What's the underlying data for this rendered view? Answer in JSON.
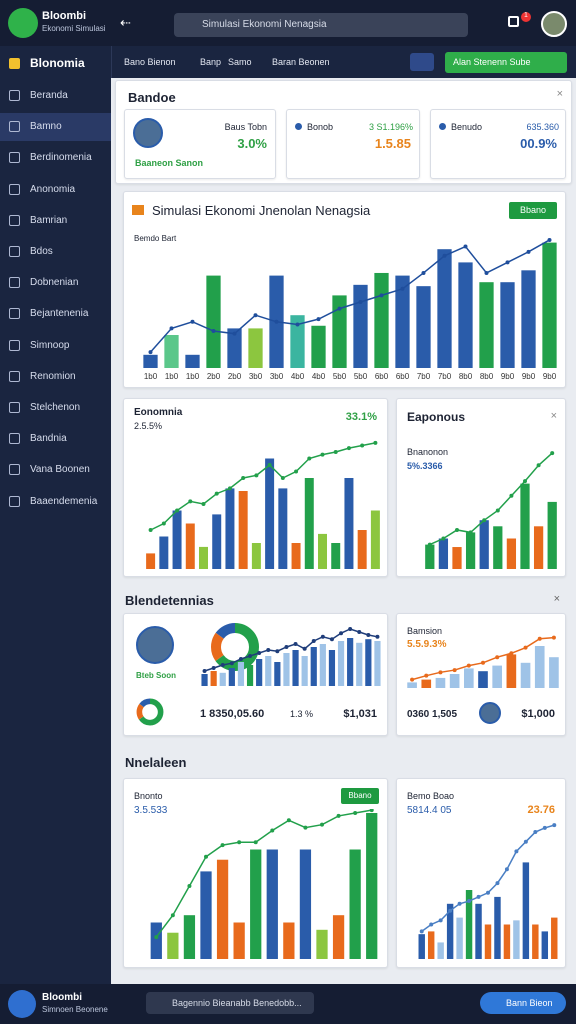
{
  "header": {
    "app_name": "Bloombi",
    "app_sub": "Ekonomi Simulasi",
    "search": "Simulasi Ekonomi Nenagsia",
    "badge": "1"
  },
  "sidebar": {
    "title": "Blonomia",
    "items": [
      "Beranda",
      "Bamno",
      "Berdinomenia",
      "Anonomia",
      "Bamrian",
      "Bdos",
      "Dobnenian",
      "Bejantenenia",
      "Simnoop",
      "Renomion",
      "Stelchenon",
      "Bandnia",
      "Vana Boonen",
      "Baaendemenia"
    ]
  },
  "subnav": {
    "items": [
      "Bano Bienon",
      "Banp",
      "Samo",
      "Baran Beonen"
    ],
    "button": "Alan Stenenn Sube"
  },
  "section1": {
    "title": "Bandoe",
    "kpis": [
      {
        "label": "Baus Tobn",
        "value": "3.0%",
        "name": "Baaneon Sanon"
      },
      {
        "label": "Bonob",
        "sub": "3 S1.196%",
        "value": "1.5.85"
      },
      {
        "label": "Benudo",
        "sub": "635.360",
        "value": "00.9%"
      }
    ]
  },
  "section2": {
    "title": "Blendetennias"
  },
  "section3": {
    "title": "Nnelaleen"
  },
  "charts": [
    {
      "type": "bar_line",
      "title": "Simulasi Ekonomi Jnenolan Nenagsia",
      "subtitle": "Bemdo Bart",
      "button": "Bbano",
      "ylim": [
        0,
        100
      ],
      "bars": [
        10,
        25,
        10,
        70,
        30,
        30,
        70,
        40,
        32,
        55,
        63,
        72,
        70,
        62,
        90,
        80,
        65,
        65,
        74,
        95
      ],
      "colors": [
        "#2a5caa",
        "#5bc78a",
        "#2a5caa",
        "#22a04b",
        "#2a5caa",
        "#8cc63f",
        "#2a5caa",
        "#3bb5a0",
        "#22a04b",
        "#22a04b",
        "#2a5caa",
        "#22a04b",
        "#2a5caa",
        "#2a5caa",
        "#2a5caa",
        "#2a5caa",
        "#22a04b",
        "#2a5caa",
        "#2a5caa",
        "#22a04b"
      ],
      "line": [
        12,
        30,
        35,
        28,
        26,
        40,
        35,
        33,
        37,
        45,
        50,
        55,
        60,
        72,
        85,
        92,
        72,
        80,
        88,
        97
      ],
      "line_color": "#1f4e9c",
      "x_labels": [
        "1b0",
        "1b0",
        "1b0",
        "2b0",
        "2b0",
        "3b0",
        "3b0",
        "4b0",
        "4b0",
        "5b0",
        "5b0",
        "6b0",
        "6b0",
        "7b0",
        "7b0",
        "8b0",
        "8b0",
        "9b0",
        "9b0",
        "9b0"
      ]
    },
    {
      "type": "bar_line",
      "title": "Eonomnia",
      "subtitle": "2.5.5%",
      "value": "33.1%",
      "ylim": [
        0,
        100
      ],
      "bars": [
        12,
        25,
        45,
        35,
        17,
        42,
        62,
        60,
        20,
        85,
        62,
        20,
        70,
        27,
        20,
        70,
        30,
        45
      ],
      "colors": [
        "#e86a1c",
        "#2a5caa",
        "#2a5caa",
        "#e86a1c",
        "#8cc63f",
        "#2a5caa",
        "#2a5caa",
        "#e86a1c",
        "#8cc63f",
        "#2a5caa",
        "#2a5caa",
        "#e86a1c",
        "#22a04b",
        "#8cc63f",
        "#22a04b",
        "#2a5caa",
        "#e86a1c",
        "#8cc63f"
      ],
      "line": [
        30,
        35,
        45,
        52,
        50,
        58,
        62,
        70,
        72,
        80,
        70,
        75,
        85,
        88,
        90,
        93,
        95,
        97
      ],
      "line_color": "#22a04b"
    },
    {
      "type": "bar_line",
      "title": "Eaponous",
      "subtitle": "Bnanonon",
      "value": "5%.3366",
      "ylim": [
        0,
        100
      ],
      "bars": [
        20,
        25,
        18,
        30,
        40,
        35,
        25,
        70,
        35,
        55
      ],
      "colors": [
        "#22a04b",
        "#2a5caa",
        "#e86a1c",
        "#22a04b",
        "#2a5caa",
        "#22a04b",
        "#e86a1c",
        "#22a04b",
        "#e86a1c",
        "#22a04b"
      ],
      "line": [
        20,
        25,
        32,
        30,
        40,
        48,
        60,
        72,
        85,
        95
      ],
      "line_color": "#22a04b"
    },
    {
      "type": "bar_line",
      "name": "Bteb Soon",
      "ylim": [
        0,
        100
      ],
      "donut": [
        65,
        20,
        15
      ],
      "donut_colors": [
        "#22a04b",
        "#e86a1c",
        "#2a5caa"
      ],
      "bars": [
        20,
        25,
        22,
        30,
        40,
        35,
        45,
        50,
        40,
        55,
        60,
        50,
        65,
        70,
        60,
        75,
        80,
        72,
        78,
        75
      ],
      "colors": [
        "#2a5caa",
        "#e86a1c",
        "#9fc3e7",
        "#2a5caa",
        "#9fc3e7",
        "#22a04b",
        "#2a5caa",
        "#9fc3e7",
        "#2a5caa",
        "#9fc3e7",
        "#2a5caa",
        "#9fc3e7",
        "#2a5caa",
        "#9fc3e7",
        "#2a5caa",
        "#9fc3e7",
        "#2a5caa",
        "#9fc3e7",
        "#2a5caa",
        "#9fc3e7"
      ],
      "line": [
        25,
        30,
        35,
        38,
        45,
        50,
        55,
        60,
        58,
        65,
        70,
        62,
        75,
        82,
        78,
        88,
        95,
        90,
        85,
        82
      ],
      "line_color": "#1f3d7a",
      "stats": [
        "1 8350,05.60",
        "1.3 %",
        "$1,031"
      ]
    },
    {
      "type": "bar_line",
      "title": "Bamsion",
      "subtitle": "5.5.9.3%",
      "ylim": [
        0,
        100
      ],
      "bars": [
        10,
        15,
        18,
        25,
        35,
        30,
        40,
        60,
        45,
        75,
        55
      ],
      "colors": [
        "#9fc3e7",
        "#e86a1c",
        "#9fc3e7",
        "#9fc3e7",
        "#9fc3e7",
        "#2a5caa",
        "#9fc3e7",
        "#e86a1c",
        "#9fc3e7",
        "#9fc3e7",
        "#9fc3e7"
      ],
      "line": [
        15,
        22,
        28,
        32,
        40,
        45,
        55,
        62,
        72,
        88,
        90
      ],
      "line_color": "#e86a1c",
      "stats": [
        "0360 1,505",
        "$1,000"
      ]
    },
    {
      "type": "bar_line",
      "title": "Bnonto",
      "subtitle": "3.5.533",
      "button": "Bbano",
      "ylim": [
        0,
        100
      ],
      "bars": [
        25,
        18,
        30,
        60,
        68,
        25,
        75,
        75,
        25,
        75,
        20,
        30,
        75,
        100
      ],
      "colors": [
        "#2a5caa",
        "#8cc63f",
        "#22a04b",
        "#2a5caa",
        "#e86a1c",
        "#e86a1c",
        "#22a04b",
        "#2a5caa",
        "#e86a1c",
        "#2a5caa",
        "#8cc63f",
        "#e86a1c",
        "#22a04b",
        "#22a04b"
      ],
      "line": [
        15,
        30,
        50,
        70,
        78,
        80,
        80,
        88,
        95,
        90,
        92,
        98,
        100,
        102
      ],
      "line_color": "#22a04b"
    },
    {
      "type": "bar_line",
      "title": "Bemo Boao",
      "subtitle": "5814.4 05",
      "value": "23.76",
      "ylim": [
        0,
        100
      ],
      "bars": [
        18,
        20,
        12,
        40,
        30,
        50,
        40,
        25,
        45,
        25,
        28,
        70,
        25,
        20,
        30
      ],
      "colors": [
        "#2a5caa",
        "#e86a1c",
        "#9fc3e7",
        "#2a5caa",
        "#9fc3e7",
        "#22a04b",
        "#2a5caa",
        "#e86a1c",
        "#2a5caa",
        "#e86a1c",
        "#9fc3e7",
        "#2a5caa",
        "#e86a1c",
        "#2a5caa",
        "#e86a1c"
      ],
      "line": [
        20,
        25,
        28,
        35,
        40,
        42,
        45,
        48,
        55,
        65,
        78,
        85,
        92,
        95,
        97
      ],
      "line_color": "#4a7fc4"
    }
  ],
  "footer": {
    "user": "Bloombi",
    "sub": "Simnoen Beonene",
    "search": "Bagennio Bieanabb Benedobb...",
    "button": "Bann Bieon"
  }
}
